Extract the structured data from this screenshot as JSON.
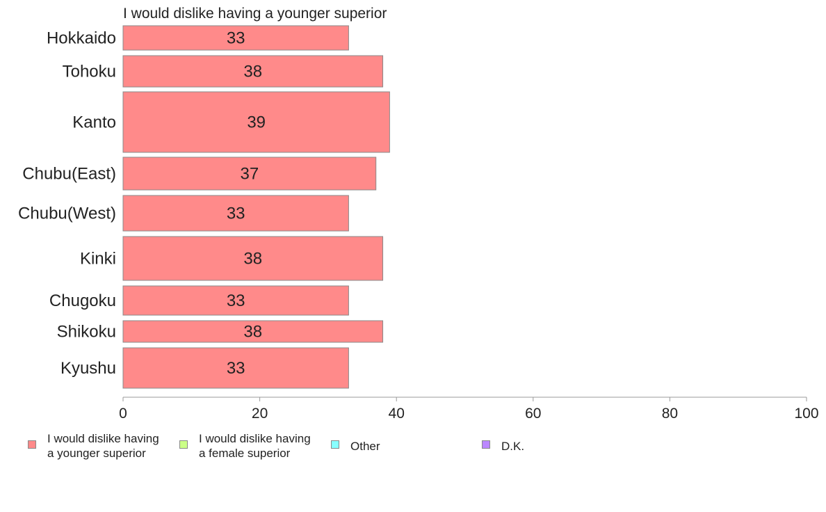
{
  "chart_data": {
    "type": "bar",
    "orientation": "horizontal",
    "title": "I would dislike having a younger superior",
    "categories": [
      "Hokkaido",
      "Tohoku",
      "Kanto",
      "Chubu(East)",
      "Chubu(West)",
      "Kinki",
      "Chugoku",
      "Shikoku",
      "Kyushu"
    ],
    "values": [
      33,
      38,
      39,
      37,
      33,
      38,
      33,
      38,
      33
    ],
    "data_labels": [
      "33",
      "38",
      "39",
      "37",
      "33",
      "38",
      "33",
      "38",
      "33"
    ],
    "xlim": [
      0,
      100
    ],
    "x_ticks": [
      "0",
      "20",
      "40",
      "60",
      "80",
      "100"
    ],
    "grid": false,
    "bar_color": "#ff8a8a",
    "bar_edge_color": "#888888",
    "legend_position": "bottom",
    "legend": [
      {
        "label": "I would dislike having\na younger superior",
        "color": "#ff8a8a"
      },
      {
        "label": "I would dislike having\na female superior",
        "color": "#ccff88"
      },
      {
        "label": "Other",
        "color": "#88ffff"
      },
      {
        "label": "D.K.",
        "color": "#bb88ff"
      }
    ]
  }
}
